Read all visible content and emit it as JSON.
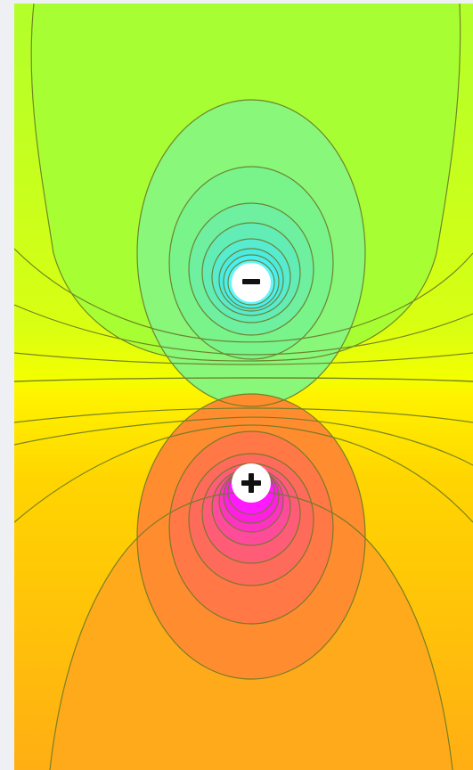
{
  "charges": [
    {
      "sign": "negative",
      "symbol": "−",
      "color": "#ffffff",
      "glyph_color": "#111111"
    },
    {
      "sign": "positive",
      "symbol": "+",
      "color": "#ffffff",
      "glyph_color": "#111111"
    }
  ],
  "colors": {
    "negative_core": "#d7ffff",
    "negative_ring": "#67f4ea",
    "negative_field": "#89f76d",
    "neutral_top": "#b2ff2b",
    "midline": "#f5ff00",
    "neutral_bottom": "#ffc20a",
    "positive_ring": "#ff4dcc",
    "positive_core": "#ff14ff",
    "positive_field": "#ff7f46",
    "background": "#eef0f4",
    "contour": "#6a7a26"
  }
}
